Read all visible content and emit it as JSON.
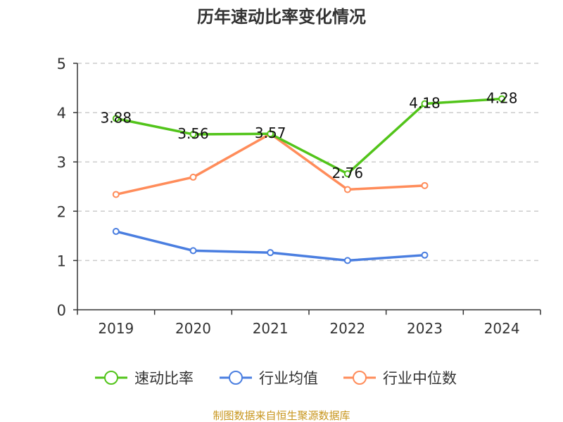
{
  "chart_data": {
    "type": "line",
    "title": "历年速动比率变化情况",
    "categories": [
      "2019",
      "2020",
      "2021",
      "2022",
      "2023",
      "2024"
    ],
    "ylim": [
      0,
      5
    ],
    "yticks": [
      "0",
      "1",
      "2",
      "3",
      "4",
      "5"
    ],
    "grid": true,
    "legend_position": "bottom",
    "series": [
      {
        "name": "速动比率",
        "color": "#52c41a",
        "values": [
          3.88,
          3.56,
          3.57,
          2.76,
          4.18,
          4.28
        ],
        "labels": [
          "3.88",
          "3.56",
          "3.57",
          "2.76",
          "4.18",
          "4.28"
        ]
      },
      {
        "name": "行业均值",
        "color": "#4a7ee0",
        "values": [
          1.59,
          1.2,
          1.16,
          1.0,
          1.11,
          null
        ]
      },
      {
        "name": "行业中位数",
        "color": "#ff8c5a",
        "values": [
          2.34,
          2.69,
          3.57,
          2.44,
          2.52,
          null
        ]
      }
    ]
  },
  "source": "制图数据来自恒生聚源数据库"
}
